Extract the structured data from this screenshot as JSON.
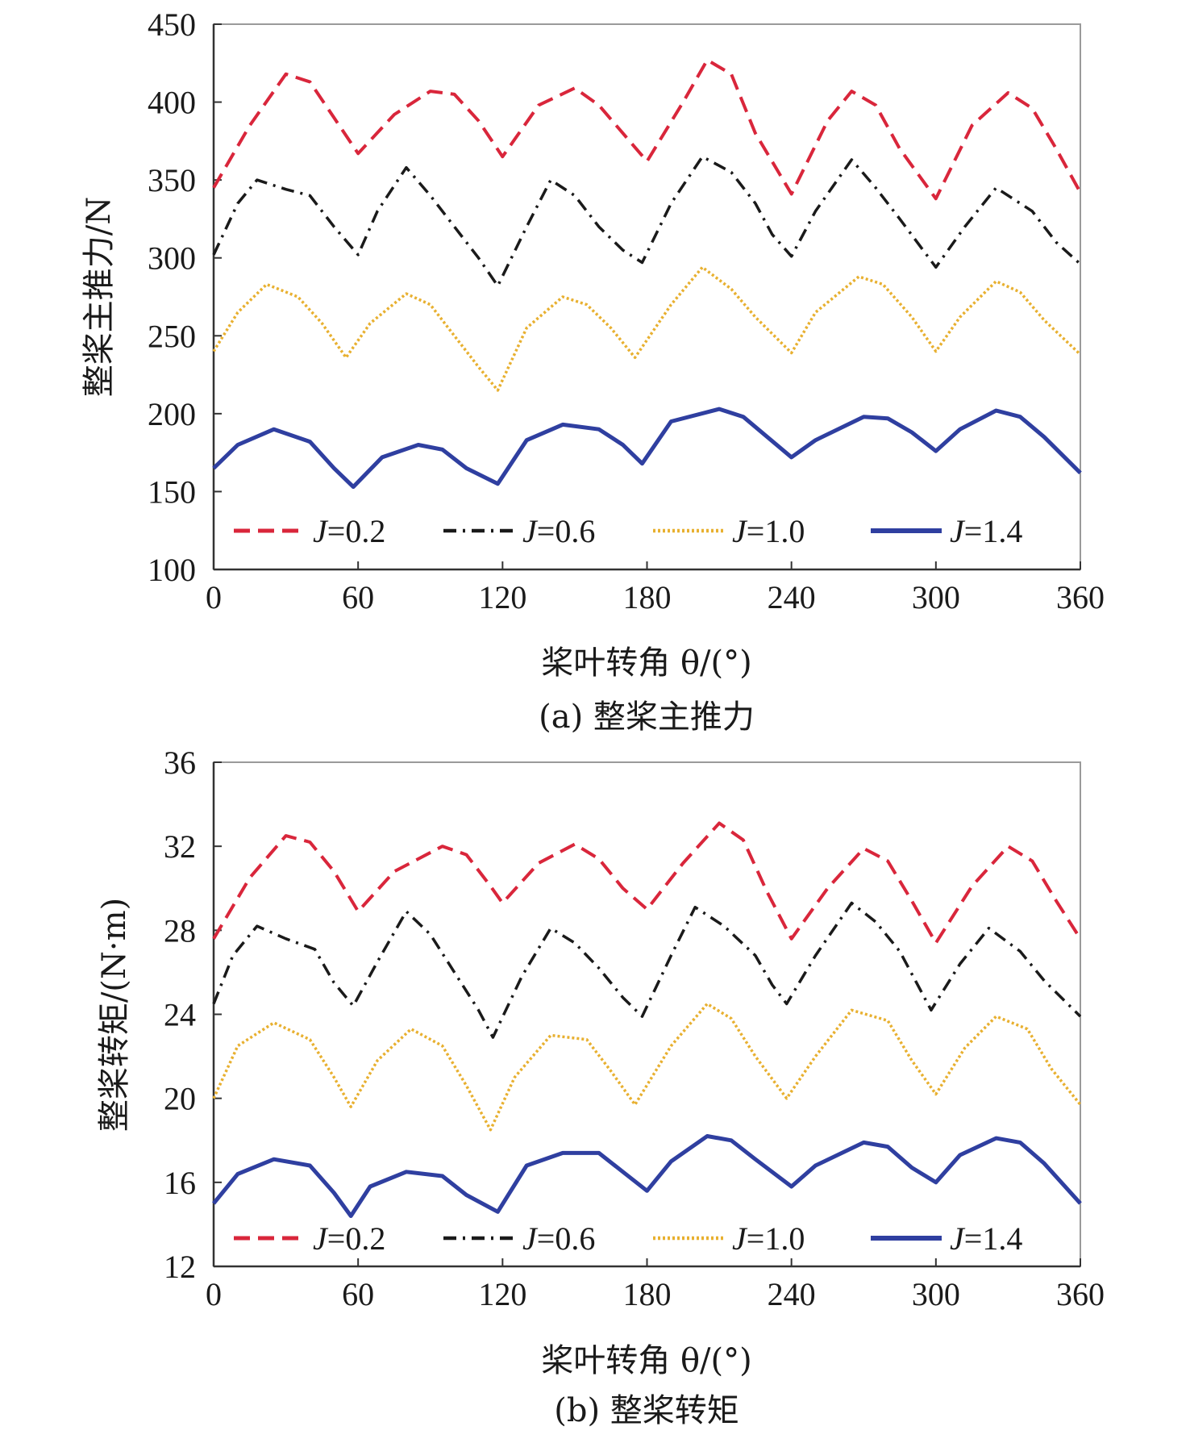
{
  "chart_data": [
    {
      "type": "line",
      "caption": "(a) 整桨主推力",
      "xlabel": "桨叶转角 θ/(°)",
      "ylabel": "整桨主推力/N",
      "xlim": [
        0,
        360
      ],
      "ylim": [
        100,
        450
      ],
      "xticks": [
        0,
        60,
        120,
        180,
        240,
        300,
        360
      ],
      "yticks": [
        100,
        150,
        200,
        250,
        300,
        350,
        400,
        450
      ],
      "legend_position": "bottom",
      "series": [
        {
          "name": "J=0.2",
          "color": "#d9263b",
          "dash": "dashed",
          "x": [
            0,
            15,
            30,
            40,
            50,
            60,
            75,
            90,
            100,
            110,
            120,
            135,
            150,
            160,
            170,
            180,
            195,
            205,
            215,
            225,
            240,
            255,
            265,
            275,
            285,
            300,
            315,
            330,
            340,
            350,
            360
          ],
          "y": [
            345,
            385,
            418,
            413,
            390,
            367,
            392,
            407,
            405,
            388,
            365,
            398,
            409,
            398,
            380,
            362,
            400,
            427,
            418,
            380,
            341,
            388,
            407,
            398,
            370,
            338,
            385,
            406,
            396,
            370,
            342
          ]
        },
        {
          "name": "J=0.6",
          "color": "#1a1a1a",
          "dash": "dashdot",
          "x": [
            0,
            10,
            18,
            30,
            40,
            50,
            60,
            68,
            80,
            90,
            100,
            110,
            118,
            130,
            140,
            150,
            160,
            170,
            178,
            190,
            203,
            215,
            225,
            232,
            240,
            250,
            265,
            275,
            285,
            300,
            312,
            325,
            340,
            350,
            360
          ],
          "y": [
            302,
            335,
            350,
            344,
            340,
            320,
            302,
            330,
            358,
            340,
            320,
            300,
            282,
            320,
            350,
            340,
            320,
            305,
            297,
            335,
            365,
            355,
            335,
            315,
            301,
            330,
            363,
            345,
            325,
            294,
            320,
            345,
            330,
            310,
            296
          ]
        },
        {
          "name": "J=1.0",
          "color": "#e8b030",
          "dash": "dotted",
          "x": [
            0,
            10,
            22,
            35,
            45,
            55,
            65,
            80,
            90,
            100,
            110,
            118,
            130,
            145,
            155,
            165,
            175,
            190,
            203,
            215,
            225,
            240,
            250,
            268,
            278,
            290,
            300,
            310,
            325,
            335,
            345,
            360
          ],
          "y": [
            240,
            265,
            283,
            275,
            258,
            236,
            258,
            277,
            270,
            250,
            230,
            215,
            255,
            275,
            270,
            255,
            236,
            270,
            294,
            280,
            262,
            239,
            265,
            288,
            283,
            262,
            240,
            262,
            285,
            278,
            260,
            238
          ]
        },
        {
          "name": "J=1.4",
          "color": "#2f3fa0",
          "dash": "solid",
          "x": [
            0,
            10,
            25,
            40,
            50,
            58,
            70,
            85,
            95,
            105,
            118,
            130,
            145,
            160,
            170,
            178,
            190,
            210,
            220,
            230,
            240,
            250,
            270,
            280,
            290,
            300,
            310,
            325,
            335,
            345,
            360
          ],
          "y": [
            165,
            180,
            190,
            182,
            165,
            153,
            172,
            180,
            177,
            165,
            155,
            183,
            193,
            190,
            180,
            168,
            195,
            203,
            198,
            185,
            172,
            183,
            198,
            197,
            188,
            176,
            190,
            202,
            198,
            185,
            162
          ]
        }
      ]
    },
    {
      "type": "line",
      "caption": "(b) 整桨转矩",
      "xlabel": "桨叶转角 θ/(°)",
      "ylabel": "整桨转矩/(N·m)",
      "xlim": [
        0,
        360
      ],
      "ylim": [
        12,
        36
      ],
      "xticks": [
        0,
        60,
        120,
        180,
        240,
        300,
        360
      ],
      "yticks": [
        12,
        16,
        20,
        24,
        28,
        32,
        36
      ],
      "legend_position": "bottom",
      "series": [
        {
          "name": "J=0.2",
          "color": "#d9263b",
          "dash": "dashed",
          "x": [
            0,
            15,
            30,
            40,
            50,
            60,
            75,
            95,
            105,
            115,
            120,
            135,
            150,
            160,
            170,
            180,
            195,
            210,
            220,
            230,
            240,
            255,
            270,
            280,
            290,
            300,
            315,
            330,
            340,
            350,
            360
          ],
          "y": [
            27.6,
            30.5,
            32.5,
            32.2,
            30.8,
            28.9,
            30.8,
            32.0,
            31.6,
            30.1,
            29.3,
            31.2,
            32.1,
            31.4,
            30.0,
            29.0,
            31.2,
            33.1,
            32.3,
            29.8,
            27.6,
            30.0,
            31.9,
            31.3,
            29.4,
            27.4,
            30.1,
            32.0,
            31.3,
            29.4,
            27.6
          ]
        },
        {
          "name": "J=0.6",
          "color": "#1a1a1a",
          "dash": "dashdot",
          "x": [
            0,
            8,
            18,
            30,
            42,
            50,
            58,
            68,
            80,
            90,
            100,
            110,
            116,
            128,
            140,
            150,
            160,
            170,
            178,
            190,
            200,
            212,
            225,
            232,
            238,
            250,
            265,
            275,
            285,
            298,
            310,
            322,
            335,
            345,
            360
          ],
          "y": [
            24.5,
            26.8,
            28.2,
            27.6,
            27.1,
            25.5,
            24.4,
            26.5,
            28.9,
            27.8,
            26.0,
            24.2,
            22.9,
            25.8,
            28.1,
            27.4,
            26.2,
            24.8,
            23.9,
            26.8,
            29.1,
            28.2,
            26.8,
            25.4,
            24.5,
            26.8,
            29.3,
            28.4,
            27.0,
            24.2,
            26.4,
            28.1,
            27.0,
            25.6,
            23.9
          ]
        },
        {
          "name": "J=1.0",
          "color": "#e8b030",
          "dash": "dotted",
          "x": [
            0,
            10,
            25,
            40,
            50,
            57,
            68,
            82,
            95,
            105,
            115,
            125,
            140,
            155,
            165,
            175,
            190,
            205,
            215,
            225,
            238,
            250,
            265,
            280,
            290,
            300,
            312,
            325,
            338,
            348,
            360
          ],
          "y": [
            20.0,
            22.5,
            23.6,
            22.8,
            21.0,
            19.6,
            21.8,
            23.3,
            22.5,
            20.6,
            18.5,
            21.0,
            23.0,
            22.8,
            21.3,
            19.7,
            22.5,
            24.5,
            23.8,
            22.0,
            20.0,
            22.0,
            24.2,
            23.7,
            21.8,
            20.2,
            22.4,
            23.9,
            23.3,
            21.4,
            19.7
          ]
        },
        {
          "name": "J=1.4",
          "color": "#2f3fa0",
          "dash": "solid",
          "x": [
            0,
            10,
            25,
            40,
            50,
            57,
            65,
            80,
            95,
            105,
            118,
            130,
            145,
            160,
            170,
            180,
            190,
            205,
            215,
            225,
            240,
            250,
            270,
            280,
            290,
            300,
            310,
            325,
            335,
            345,
            360
          ],
          "y": [
            15.0,
            16.4,
            17.1,
            16.8,
            15.5,
            14.4,
            15.8,
            16.5,
            16.3,
            15.4,
            14.6,
            16.8,
            17.4,
            17.4,
            16.5,
            15.6,
            17.0,
            18.2,
            18.0,
            17.1,
            15.8,
            16.8,
            17.9,
            17.7,
            16.7,
            16.0,
            17.3,
            18.1,
            17.9,
            16.9,
            15.0
          ]
        }
      ]
    }
  ]
}
